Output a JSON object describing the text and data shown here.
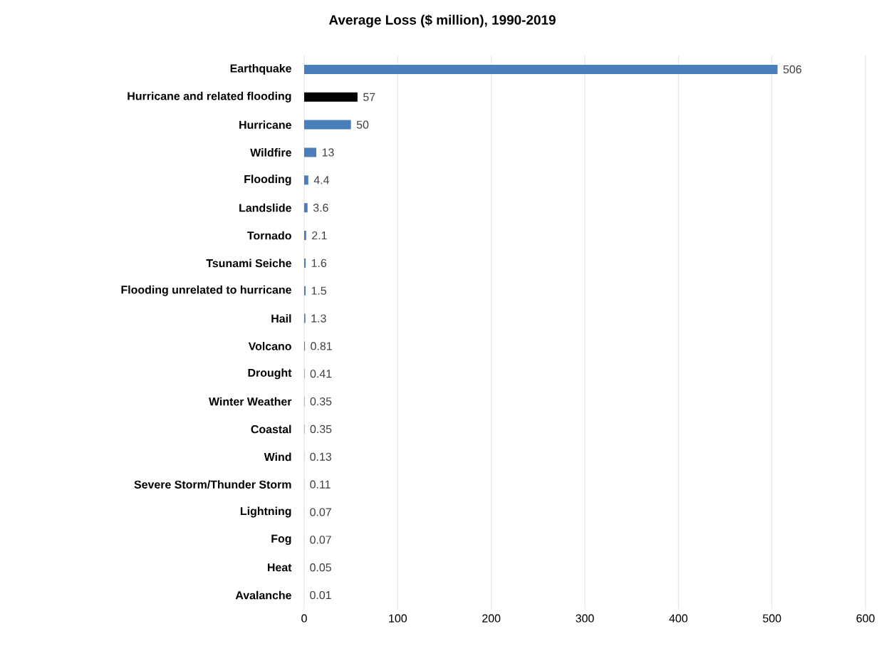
{
  "chart_data": {
    "type": "bar",
    "orientation": "horizontal",
    "title": "Average Loss ($ million), 1990-2019",
    "categories": [
      "Earthquake",
      "Hurricane and related flooding",
      "Hurricane",
      "Wildfire",
      "Flooding",
      "Landslide",
      "Tornado",
      "Tsunami Seiche",
      "Flooding unrelated to hurricane",
      "Hail",
      "Volcano",
      "Drought",
      "Winter Weather",
      "Coastal",
      "Wind",
      "Severe Storm/Thunder Storm",
      "Lightning",
      "Fog",
      "Heat",
      "Avalanche"
    ],
    "values": [
      506,
      57,
      50,
      13,
      4.4,
      3.6,
      2.1,
      1.6,
      1.5,
      1.3,
      0.81,
      0.41,
      0.35,
      0.35,
      0.13,
      0.11,
      0.07,
      0.07,
      0.05,
      0.01
    ],
    "colors": [
      "#4a7ebb",
      "#000000",
      "#4a7ebb",
      "#4a7ebb",
      "#4a7ebb",
      "#4a7ebb",
      "#4a7ebb",
      "#4a7ebb",
      "#4a7ebb",
      "#4a7ebb",
      "#4a7ebb",
      "#4a7ebb",
      "#4a7ebb",
      "#4a7ebb",
      "#4a7ebb",
      "#4a7ebb",
      "#4a7ebb",
      "#4a7ebb",
      "#4a7ebb",
      "#4a7ebb"
    ],
    "xlim": [
      0,
      600
    ],
    "xticks": [
      0,
      100,
      200,
      300,
      400,
      500,
      600
    ],
    "grid": "x",
    "data_labels": true
  }
}
